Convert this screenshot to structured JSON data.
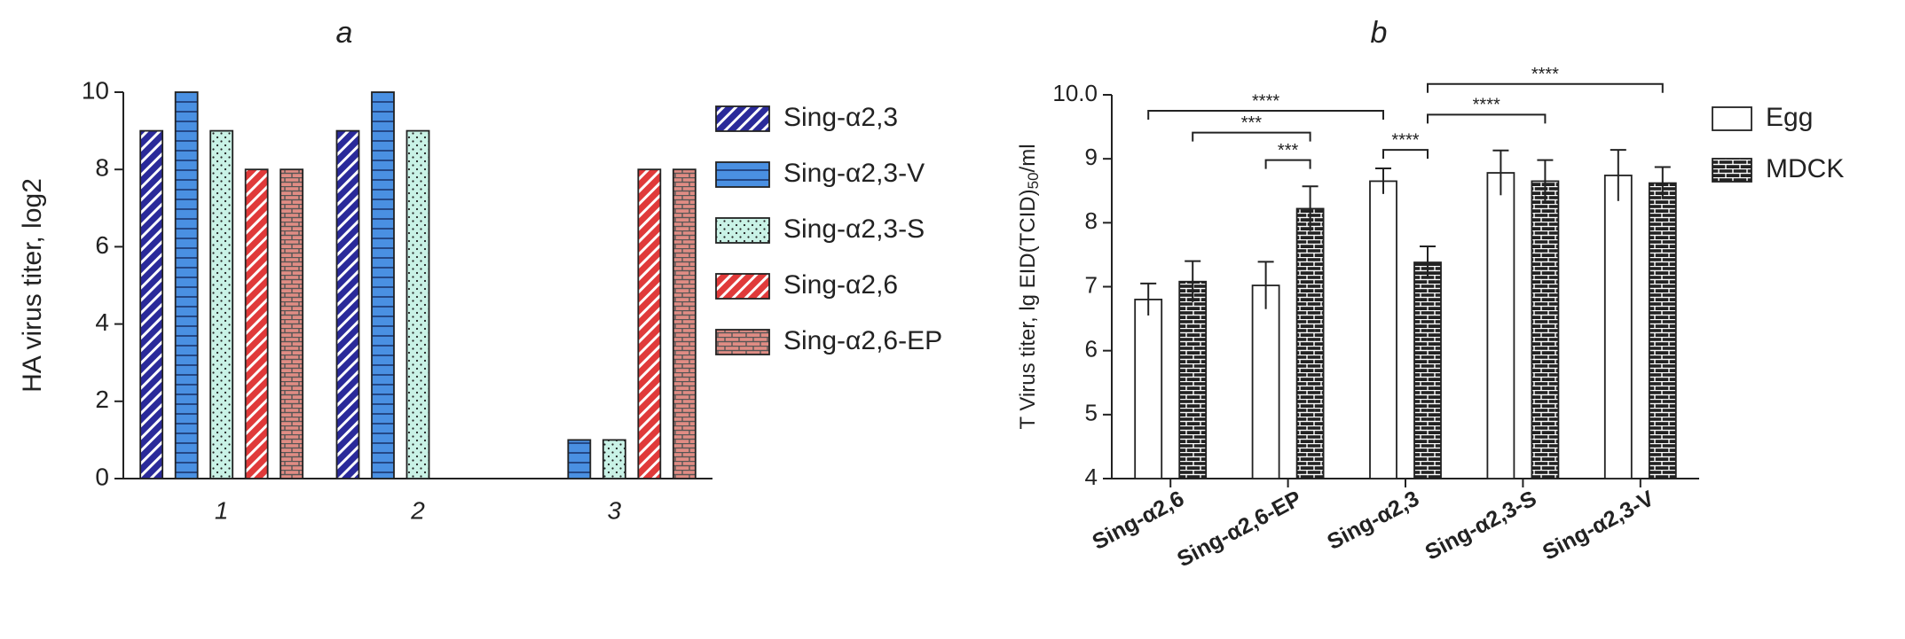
{
  "chart_data": [
    {
      "type": "bar",
      "title": "a",
      "y_label": "HA virus titer, log2",
      "categories": [
        "1",
        "2",
        "3"
      ],
      "series": [
        {
          "name": "Sing-α2,3",
          "color": "#2a2a9a",
          "pattern": "diagonal",
          "values": [
            9,
            9,
            null
          ]
        },
        {
          "name": "Sing-α2,3-V",
          "color": "#4a90e2",
          "pattern": "horizontal",
          "values": [
            10,
            10,
            1
          ]
        },
        {
          "name": "Sing-α2,3-S",
          "color": "#c9f2e6",
          "pattern": "dots",
          "values": [
            9,
            9,
            1
          ]
        },
        {
          "name": "Sing-α2,6",
          "color": "#e03a3a",
          "pattern": "diagonal",
          "values": [
            8,
            null,
            8
          ]
        },
        {
          "name": "Sing-α2,6-EP",
          "color": "#e08c84",
          "pattern": "bricks",
          "values": [
            8,
            null,
            8
          ]
        }
      ],
      "ylim": [
        0,
        10
      ],
      "yticks": [
        0,
        2,
        4,
        6,
        8,
        10
      ]
    },
    {
      "type": "bar",
      "title": "b",
      "y_label": "T Virus titer, lg EID(TCID)",
      "y_label_sub": "50",
      "y_label_end": "/ml",
      "categories": [
        "Sing-α2,6",
        "Sing-α2,6-EP",
        "Sing-α2,3",
        "Sing-α2,3-S",
        "Sing-α2,3-V"
      ],
      "series": [
        {
          "name": "Egg",
          "color": "#ffffff",
          "pattern": "solid",
          "values": [
            6.8,
            7.02,
            8.65,
            8.78,
            8.74
          ],
          "errors": [
            0.25,
            0.37,
            0.2,
            0.35,
            0.4
          ]
        },
        {
          "name": "MDCK",
          "color": "#222222",
          "pattern": "bricks",
          "values": [
            7.08,
            8.22,
            7.38,
            8.65,
            8.62
          ],
          "errors": [
            0.32,
            0.35,
            0.25,
            0.33,
            0.25
          ]
        }
      ],
      "comparisons": [
        {
          "label": "****",
          "groups": [
            [
              0,
              0
            ],
            [
              2,
              0
            ]
          ]
        },
        {
          "label": "***",
          "groups": [
            [
              0,
              1
            ],
            [
              1,
              1
            ]
          ]
        },
        {
          "label": "***",
          "groups": [
            [
              1,
              0
            ],
            [
              1,
              1
            ]
          ]
        },
        {
          "label": "****",
          "groups": [
            [
              2,
              0
            ],
            [
              2,
              1
            ]
          ]
        },
        {
          "label": "****",
          "groups": [
            [
              2,
              1
            ],
            [
              3,
              1
            ]
          ]
        },
        {
          "label": "****",
          "groups": [
            [
              2,
              1
            ],
            [
              4,
              1
            ]
          ]
        }
      ],
      "ylim": [
        4,
        10
      ],
      "yticks": [
        4,
        5,
        6,
        7,
        8,
        9,
        {
          "value": 10,
          "label": "10.0"
        }
      ]
    }
  ]
}
